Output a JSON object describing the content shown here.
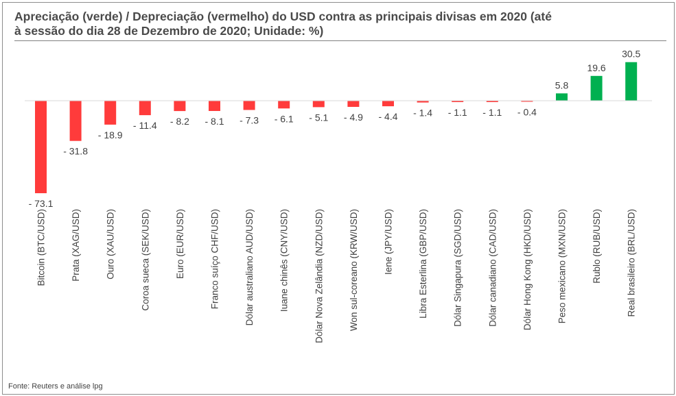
{
  "title": "Apreciação (verde) / Depreciação (vermelho) do USD contra as principais divisas em 2020 (até à sessão do dia 28 de Dezembro de 2020; Unidade: %)",
  "title_line1": "Apreciação (verde) / Depreciação (vermelho) do USD contra as principais divisas em 2020 (até",
  "title_line2": "à sessão do dia 28 de Dezembro de 2020; Unidade: %)",
  "source": "Fonte: Reuters e análise lpg",
  "colors": {
    "positive": "#00b050",
    "negative": "#ff3b3b",
    "text": "#404040"
  },
  "chart_data": {
    "type": "bar",
    "title": "Apreciação (verde) / Depreciação (vermelho) do USD contra as principais divisas em 2020 (até à sessão do dia 28 de Dezembro de 2020; Unidade: %)",
    "categories": [
      "Bitcoin (BTC/USD)",
      "Prata (XAG/USD)",
      "Ouro (XAU/USD)",
      "Coroa sueca (SEK/USD)",
      "Euro (EUR/USD)",
      "Franco suíço CHF/USD)",
      "Dólar australiano AUD/USD)",
      "Iuane chinês (CNY/USD)",
      "Dólar Nova Zelândia (NZD/USD)",
      "Won sul-coreano (KRW/USD)",
      "Iene (JPY/USD)",
      "Libra Esterlina (GBP/USD)",
      "Dólar Singapura (SGD/USD)",
      "Dólar canadiano (CAD/USD)",
      "Dólar Hong Kong (HKD/USD)",
      "Peso mexicano (MXN/USD)",
      "Rublo (RUB/USD)",
      "Real brasileiro (BRL/USD)"
    ],
    "values": [
      -73.1,
      -31.8,
      -18.9,
      -11.4,
      -8.2,
      -8.1,
      -7.3,
      -6.1,
      -5.1,
      -4.9,
      -4.4,
      -1.4,
      -1.1,
      -1.1,
      -0.4,
      5.8,
      19.6,
      30.5
    ],
    "labels": [
      "- 73.1",
      "- 31.8",
      "- 18.9",
      "- 11.4",
      "- 8.2",
      "- 8.1",
      "- 7.3",
      "- 6.1",
      "- 5.1",
      "- 4.9",
      "- 4.4",
      "- 1.4",
      "- 1.1",
      "- 1.1",
      "- 0.4",
      "5.8",
      "19.6",
      "30.5"
    ],
    "xlabel": "",
    "ylabel": "",
    "ylim": [
      -73.1,
      30.5
    ],
    "grid": false,
    "legend": "none"
  }
}
